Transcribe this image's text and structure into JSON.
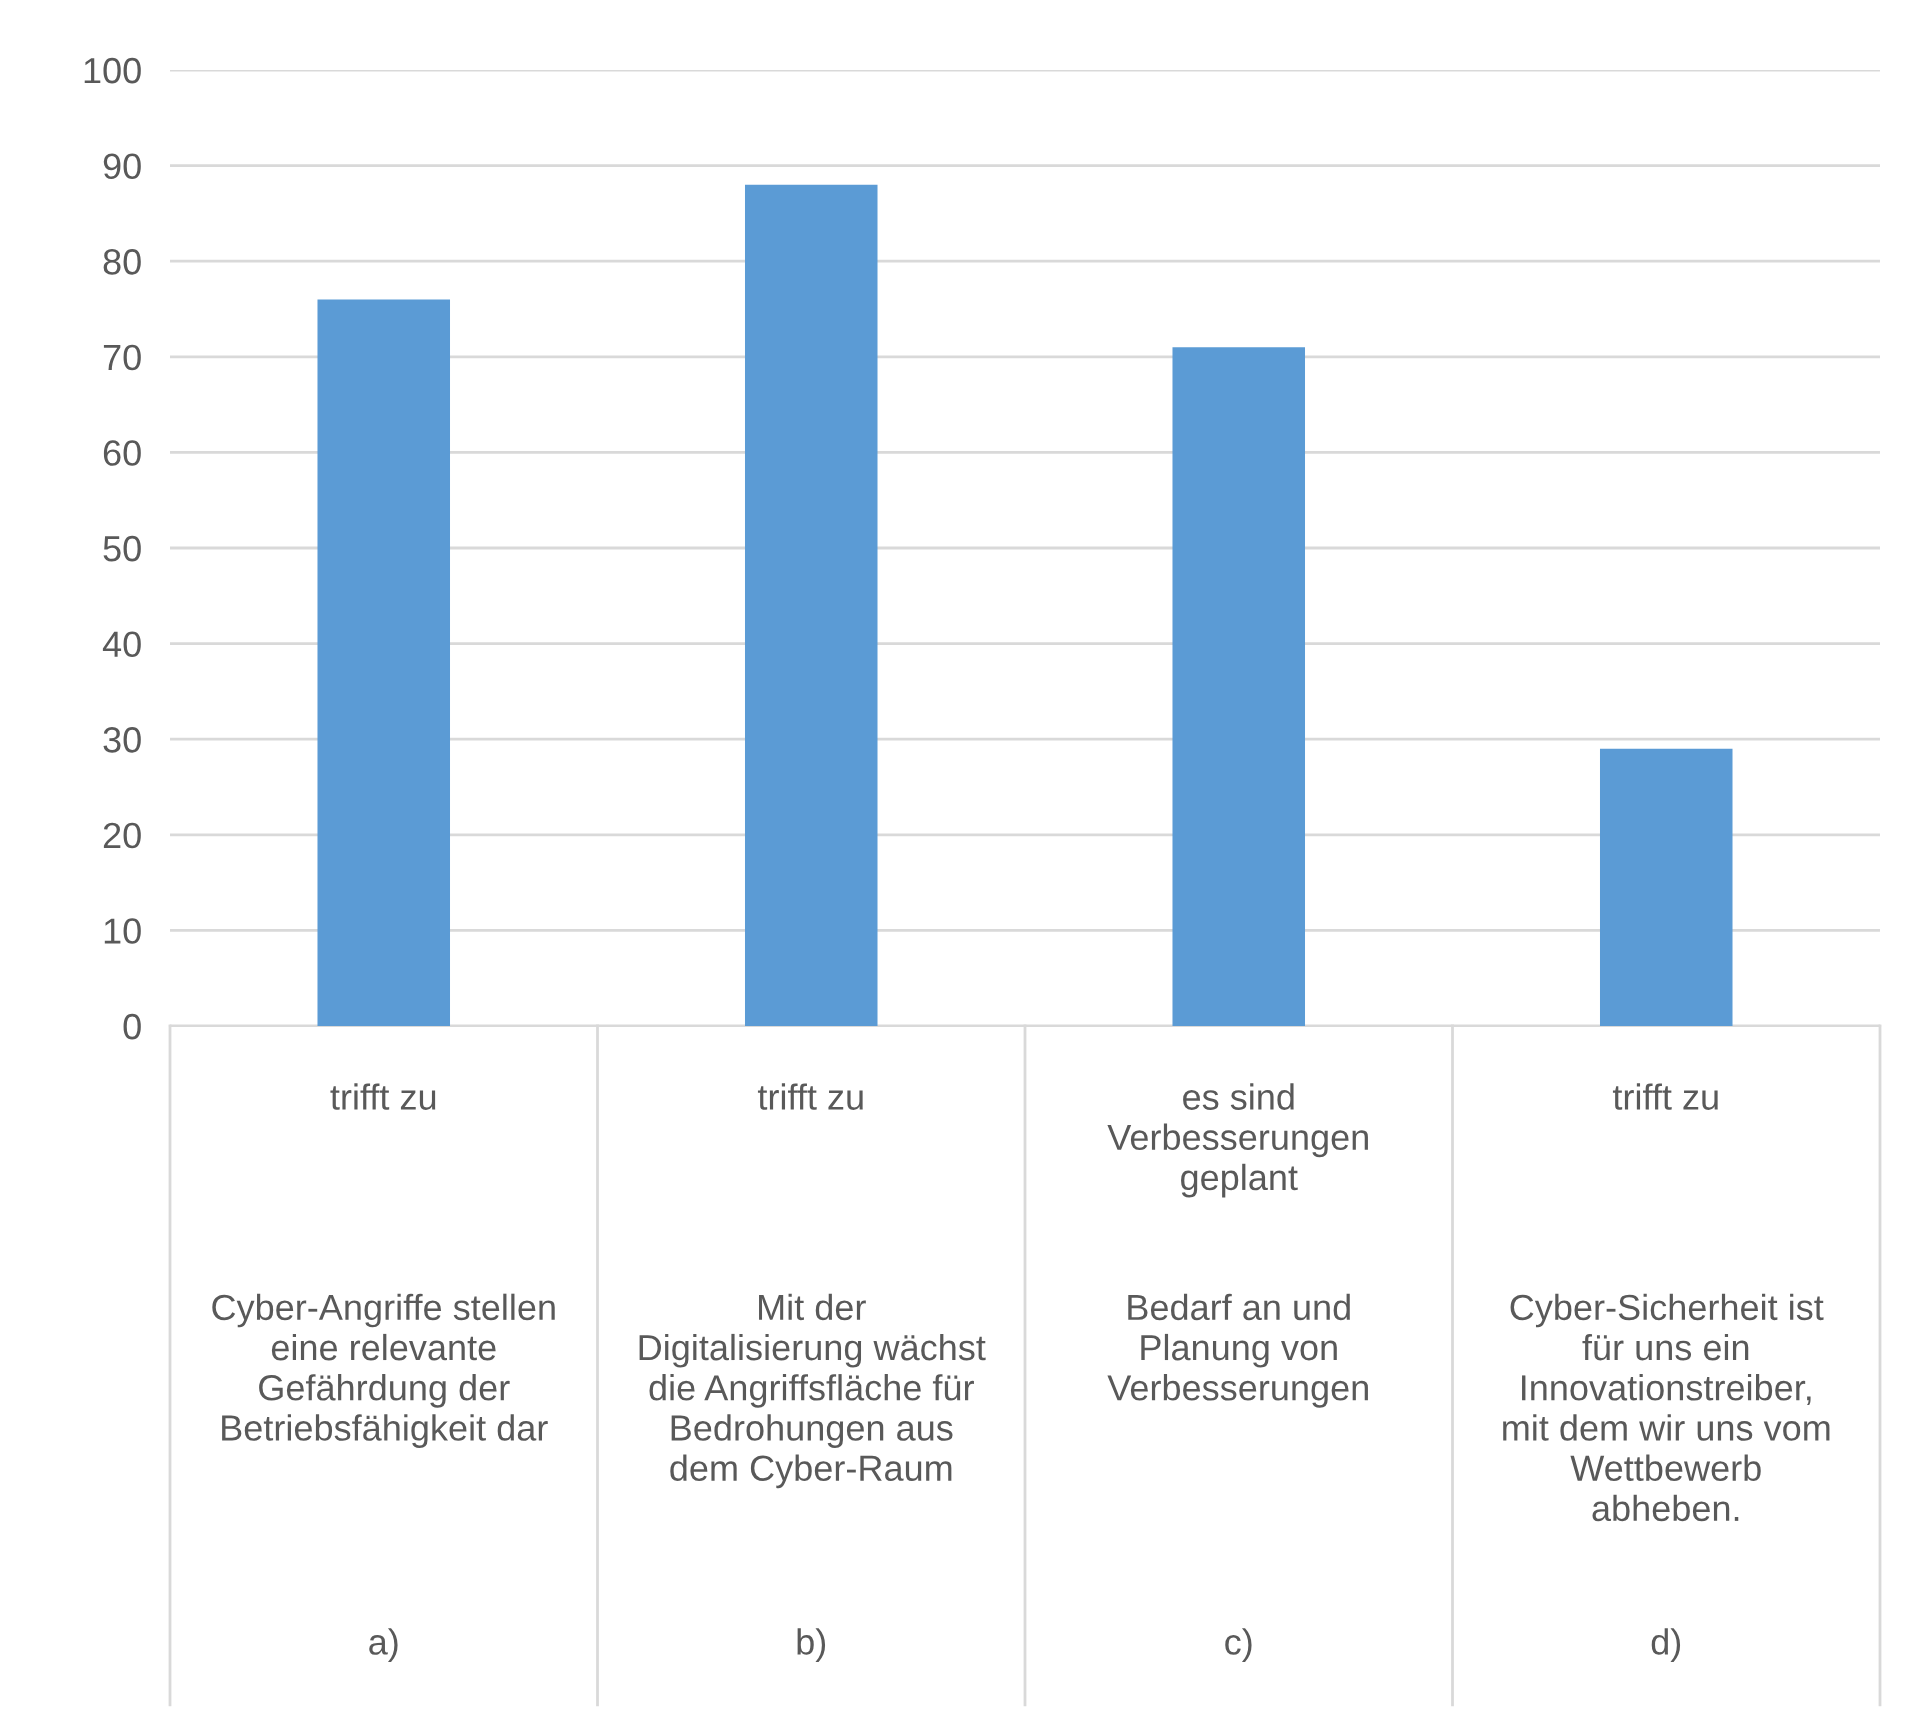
{
  "chart_data": {
    "type": "bar",
    "categories": [
      "trifft zu\n\nCyber-Angriffe stellen\neine relevante\nGefährdung der\nBetriebsfähigkeit dar\n\na)",
      "trifft zu\n\nMit der\nDigitalisierung wächst\ndie Angriffsfläche für\nBedrohungen aus\ndem Cyber-Raum\n\nb)",
      "es sind\nVerbesserungen\ngeplant\n\nBedarf an und\nPlanung von\nVerbesserungen\n\nc)",
      "trifft zu\n\nCyber-Sicherheit ist\nfür uns ein\nInnovationstreiber,\nmit dem wir uns vom\nWettbewerb\nabheben.\n\nd)"
    ],
    "values": [
      76,
      88,
      71,
      29
    ],
    "color": "#5b9bd5",
    "ylim": [
      0,
      100
    ],
    "yticks": [
      0,
      10,
      20,
      30,
      40,
      50,
      60,
      70,
      80,
      90,
      100
    ],
    "grid": "y"
  }
}
